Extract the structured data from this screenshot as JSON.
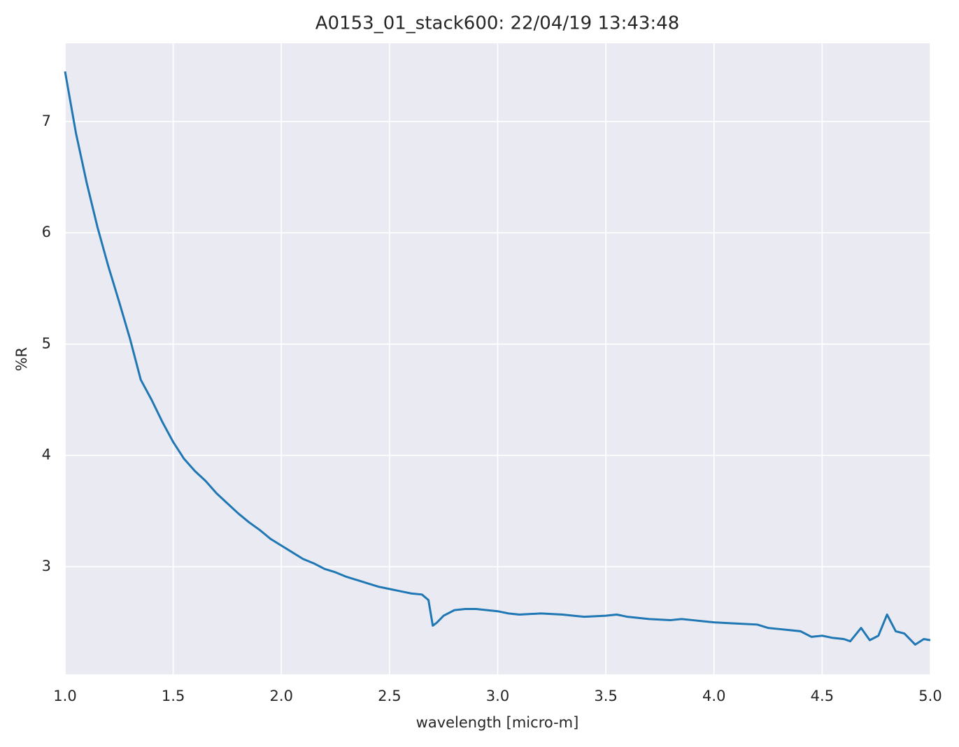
{
  "chart_data": {
    "type": "line",
    "title": "A0153_01_stack600:  22/04/19 13:43:48",
    "x_label": "wavelength [micro-m]",
    "y_label": "%R",
    "x": [
      1.0,
      1.05,
      1.1,
      1.15,
      1.2,
      1.25,
      1.3,
      1.35,
      1.4,
      1.45,
      1.5,
      1.55,
      1.6,
      1.65,
      1.7,
      1.75,
      1.8,
      1.85,
      1.9,
      1.95,
      2.0,
      2.05,
      2.1,
      2.15,
      2.2,
      2.25,
      2.3,
      2.35,
      2.4,
      2.45,
      2.5,
      2.55,
      2.6,
      2.65,
      2.68,
      2.7,
      2.72,
      2.75,
      2.8,
      2.85,
      2.9,
      2.95,
      3.0,
      3.05,
      3.1,
      3.2,
      3.3,
      3.35,
      3.4,
      3.5,
      3.55,
      3.6,
      3.7,
      3.8,
      3.85,
      3.9,
      4.0,
      4.1,
      4.2,
      4.25,
      4.3,
      4.35,
      4.4,
      4.45,
      4.5,
      4.55,
      4.6,
      4.63,
      4.68,
      4.72,
      4.76,
      4.8,
      4.84,
      4.88,
      4.93,
      4.97,
      5.0
    ],
    "series": [
      {
        "name": "%R",
        "color": "#1f77b4",
        "values": [
          7.45,
          6.9,
          6.45,
          6.05,
          5.7,
          5.38,
          5.05,
          4.68,
          4.5,
          4.3,
          4.12,
          3.97,
          3.86,
          3.77,
          3.66,
          3.57,
          3.48,
          3.4,
          3.33,
          3.25,
          3.19,
          3.13,
          3.07,
          3.03,
          2.98,
          2.95,
          2.91,
          2.88,
          2.85,
          2.82,
          2.8,
          2.78,
          2.76,
          2.75,
          2.7,
          2.47,
          2.5,
          2.56,
          2.61,
          2.62,
          2.62,
          2.61,
          2.6,
          2.58,
          2.57,
          2.58,
          2.57,
          2.56,
          2.55,
          2.56,
          2.57,
          2.55,
          2.53,
          2.52,
          2.53,
          2.52,
          2.5,
          2.49,
          2.48,
          2.45,
          2.44,
          2.43,
          2.42,
          2.37,
          2.38,
          2.36,
          2.35,
          2.33,
          2.45,
          2.34,
          2.38,
          2.57,
          2.42,
          2.4,
          2.3,
          2.35,
          2.34
        ]
      }
    ],
    "xlim": [
      1.0,
      5.0
    ],
    "ylim": [
      2.033,
      7.703
    ],
    "xticks": [
      {
        "value": 1.0,
        "label": "1.0"
      },
      {
        "value": 1.5,
        "label": "1.5"
      },
      {
        "value": 2.0,
        "label": "2.0"
      },
      {
        "value": 2.5,
        "label": "2.5"
      },
      {
        "value": 3.0,
        "label": "3.0"
      },
      {
        "value": 3.5,
        "label": "3.5"
      },
      {
        "value": 4.0,
        "label": "4.0"
      },
      {
        "value": 4.5,
        "label": "4.5"
      },
      {
        "value": 5.0,
        "label": "5.0"
      }
    ],
    "yticks": [
      3,
      4,
      5,
      6,
      7
    ],
    "grid": true
  }
}
